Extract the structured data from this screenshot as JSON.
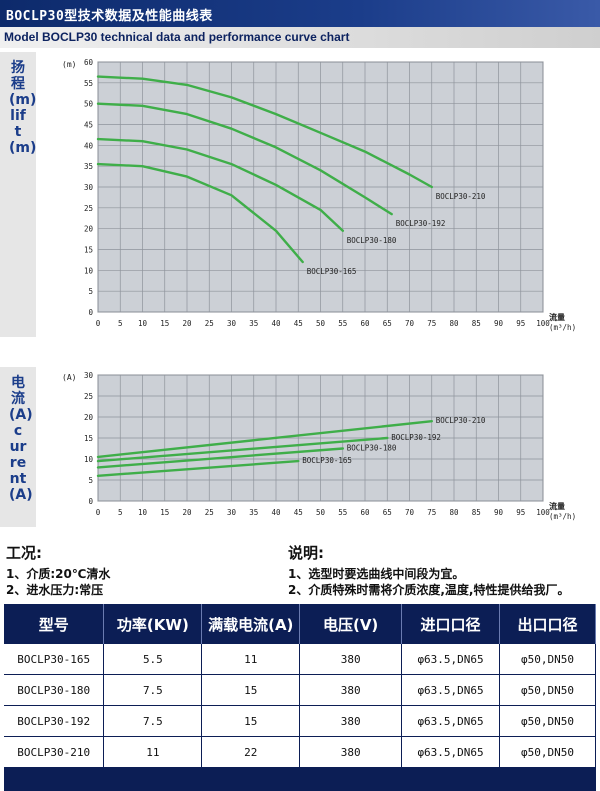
{
  "header": {
    "title": "BOCLP30型技术数据及性能曲线表",
    "subtitle": "Model BOCLP30 technical data and performance curve chart"
  },
  "colors": {
    "curve": "#3fae49",
    "header_blue": "#0c1e55",
    "grid_bg": "#ccd0d6"
  },
  "chart_data": [
    {
      "type": "line",
      "title": "",
      "side_label": "扬程(m) lift(m)",
      "ylabel": "(m)",
      "xlabel": "流量 (m³/h)",
      "x_unit_label": "流量",
      "x_unit_sub": "(m³/h)",
      "xlim": [
        0,
        100
      ],
      "ylim": [
        0,
        60
      ],
      "x_ticks": [
        0,
        5,
        10,
        15,
        20,
        25,
        30,
        35,
        40,
        45,
        50,
        55,
        60,
        65,
        70,
        75,
        80,
        85,
        90,
        95,
        100
      ],
      "y_ticks": [
        0,
        5,
        10,
        15,
        20,
        25,
        30,
        35,
        40,
        45,
        50,
        55,
        60
      ],
      "grid": true,
      "series": [
        {
          "name": "BOCLP30-210",
          "x": [
            0,
            10,
            20,
            30,
            40,
            50,
            60,
            70,
            75
          ],
          "y": [
            56.5,
            56,
            54.5,
            51.5,
            47.5,
            43,
            38.5,
            33,
            30
          ]
        },
        {
          "name": "BOCLP30-192",
          "x": [
            0,
            10,
            20,
            30,
            40,
            50,
            60,
            66
          ],
          "y": [
            50,
            49.5,
            47.5,
            44,
            39.5,
            34,
            27.5,
            23.5
          ]
        },
        {
          "name": "BOCLP30-180",
          "x": [
            0,
            10,
            20,
            30,
            40,
            50,
            55
          ],
          "y": [
            41.5,
            41,
            39,
            35.5,
            30.5,
            24.5,
            19.5
          ]
        },
        {
          "name": "BOCLP30-165",
          "x": [
            0,
            10,
            20,
            30,
            40,
            46
          ],
          "y": [
            35.5,
            35,
            32.5,
            28,
            19.5,
            12
          ]
        }
      ]
    },
    {
      "type": "line",
      "title": "",
      "side_label": "电流(A) current(A)",
      "ylabel": "(A)",
      "xlabel": "流量 (m³/h)",
      "x_unit_label": "流量",
      "x_unit_sub": "(m³/h)",
      "xlim": [
        0,
        100
      ],
      "ylim": [
        0,
        30
      ],
      "x_ticks": [
        0,
        5,
        10,
        15,
        20,
        25,
        30,
        35,
        40,
        45,
        50,
        55,
        60,
        65,
        70,
        75,
        80,
        85,
        90,
        95,
        100
      ],
      "y_ticks": [
        0,
        5,
        10,
        15,
        20,
        25,
        30
      ],
      "grid": true,
      "series": [
        {
          "name": "BOCLP30-210",
          "x": [
            0,
            75
          ],
          "y": [
            10.5,
            19
          ]
        },
        {
          "name": "BOCLP30-192",
          "x": [
            0,
            65
          ],
          "y": [
            9.5,
            15
          ]
        },
        {
          "name": "BOCLP30-180",
          "x": [
            0,
            55
          ],
          "y": [
            8,
            12.5
          ]
        },
        {
          "name": "BOCLP30-165",
          "x": [
            0,
            45
          ],
          "y": [
            6,
            9.5
          ]
        }
      ]
    }
  ],
  "notes_left": {
    "heading": "工况:",
    "lines": [
      "1、介质:20℃清水",
      "2、进水压力:常压"
    ]
  },
  "notes_right": {
    "heading": "说明:",
    "lines": [
      "1、选型时要选曲线中间段为宜。",
      "2、介质特殊时需将介质浓度,温度,特性提供给我厂。"
    ]
  },
  "spec_table": {
    "headers": [
      "型号",
      "功率(KW)",
      "满载电流(A)",
      "电压(V)",
      "进口口径",
      "出口口径"
    ],
    "rows": [
      [
        "BOCLP30-165",
        "5.5",
        "11",
        "380",
        "φ63.5,DN65",
        "φ50,DN50"
      ],
      [
        "BOCLP30-180",
        "7.5",
        "15",
        "380",
        "φ63.5,DN65",
        "φ50,DN50"
      ],
      [
        "BOCLP30-192",
        "7.5",
        "15",
        "380",
        "φ63.5,DN65",
        "φ50,DN50"
      ],
      [
        "BOCLP30-210",
        "11",
        "22",
        "380",
        "φ63.5,DN65",
        "φ50,DN50"
      ]
    ]
  }
}
